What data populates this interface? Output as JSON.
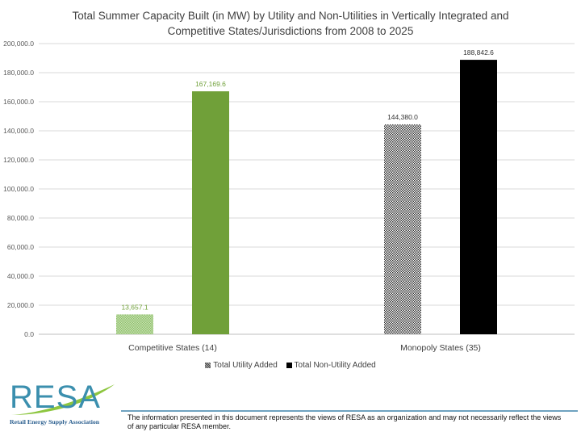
{
  "chart_data": {
    "type": "bar",
    "title": "Total Summer Capacity Built (in MW) by Utility and Non-Utilities in Vertically Integrated and Competitive States/Jurisdictions from 2008 to 2025",
    "title_lines": [
      "Total Summer Capacity Built (in MW) by Utility and Non-Utilities in Vertically Integrated and",
      "Competitive States/Jurisdictions from 2008 to 2025"
    ],
    "categories": [
      "Competitive States (14)",
      "Monopoly States (35)"
    ],
    "series": [
      {
        "name": "Total Utility Added",
        "values": [
          13657.1,
          144380.0
        ]
      },
      {
        "name": "Total Non-Utility Added",
        "values": [
          167169.6,
          188842.6
        ]
      }
    ],
    "data_labels": [
      [
        "13,657.1",
        "144,380.0"
      ],
      [
        "167,169.6",
        "188,842.6"
      ]
    ],
    "ylim": [
      0,
      200000
    ],
    "yticks": [
      "0.0",
      "20,000.0",
      "40,000.0",
      "60,000.0",
      "80,000.0",
      "100,000.0",
      "120,000.0",
      "140,000.0",
      "160,000.0",
      "180,000.0",
      "200,000.0"
    ],
    "xlabel": "",
    "ylabel": "",
    "grid": true,
    "legend_position": "bottom",
    "colors": {
      "competitive_utility": "#a9d18e",
      "competitive_non_utility": "#70a039",
      "monopoly_utility": "#7f7f7f",
      "monopoly_non_utility": "#000000",
      "competitive_label": "#70a039",
      "monopoly_label": "#333333"
    }
  },
  "footer": {
    "logo_text": "RESA",
    "logo_subtitle": "Retail Energy Supply Association",
    "disclaimer": "The information presented in this document represents the views of RESA as an organization and may not necessarily reflect the views of any particular RESA member."
  }
}
